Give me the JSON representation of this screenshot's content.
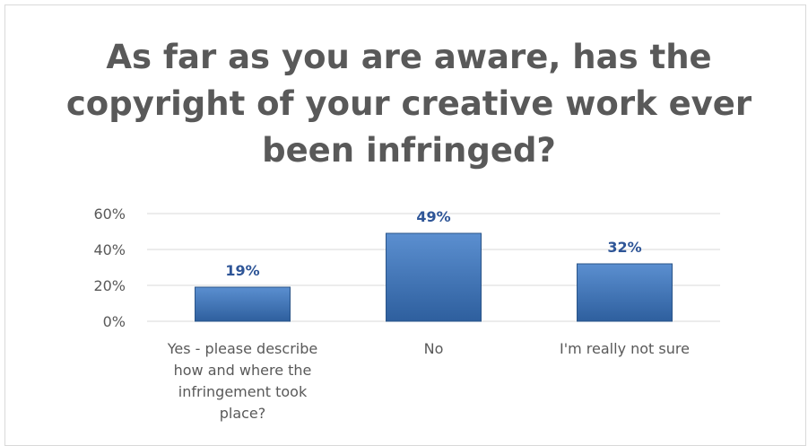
{
  "chart_data": {
    "type": "bar",
    "title": "As far as you are aware, has the copyright of your creative work ever been infringed?",
    "categories": [
      [
        "Yes - please describe",
        "how and where the",
        "infringement took",
        "place?"
      ],
      [
        "No"
      ],
      [
        "I'm really not sure"
      ]
    ],
    "values": [
      19,
      49,
      32
    ],
    "value_labels": [
      "19%",
      "49%",
      "32%"
    ],
    "yticks": [
      "0%",
      "20%",
      "40%",
      "60%"
    ],
    "ylim": [
      0,
      60
    ],
    "grid": true,
    "legend": "none",
    "colors": {
      "bar_top": "#5b8fd0",
      "bar_bottom": "#2e5f9e",
      "bar_stroke": "#2a5488",
      "value_label": "#2e5597",
      "axis_text": "#595959",
      "gridline": "#d9d9d9"
    }
  }
}
